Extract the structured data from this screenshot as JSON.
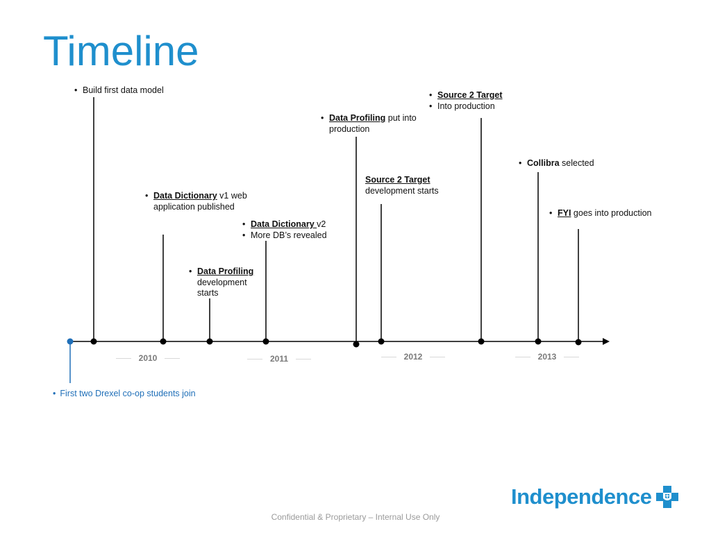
{
  "slide": {
    "title": "Timeline",
    "footer": "Confidential & Proprietary – Internal Use Only",
    "logo_text": "Independence",
    "accent_color": "#1f8fcd"
  },
  "years": [
    "2010",
    "2011",
    "2012",
    "2013"
  ],
  "events": {
    "first_data_model": {
      "text": "Build first data model"
    },
    "data_dictionary_v1": {
      "keyword": "Data Dictionary",
      "rest": " v1 web application published"
    },
    "data_profiling_dev": {
      "keyword": "Data Profiling",
      "rest": "development starts"
    },
    "data_dictionary_v2": {
      "keyword": "Data Dictionary ",
      "rest": "v2",
      "second": "More DB’s revealed"
    },
    "data_profiling_prod": {
      "keyword": "Data Profiling",
      "rest": " put into production"
    },
    "s2t_dev": {
      "keyword": "Source 2 Target",
      "rest": "development starts"
    },
    "s2t_prod": {
      "keyword": "Source 2 Target",
      "second": "Into production"
    },
    "collibra": {
      "keyword": "Collibra",
      "rest": " selected"
    },
    "fyi": {
      "keyword": "FYI",
      "rest": " goes into production"
    },
    "coop": {
      "text": "First two Drexel co-op students join"
    }
  }
}
